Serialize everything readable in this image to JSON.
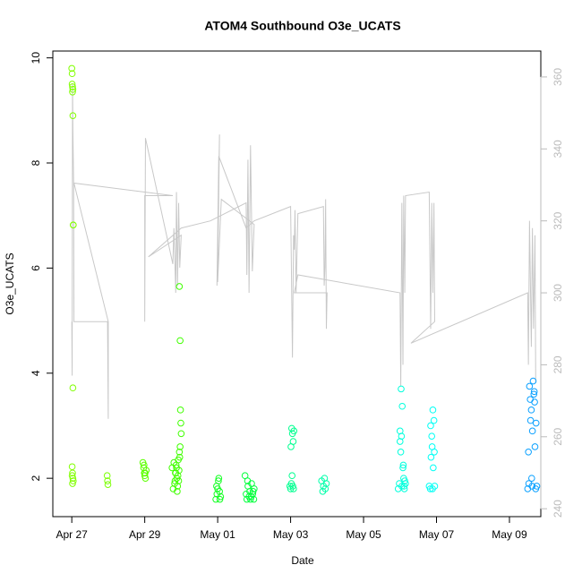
{
  "chart_data": {
    "type": "scatter",
    "title": "ATOM4 Southbound O3e_UCATS",
    "x_label": "Date",
    "y_label": "O3e_UCATS",
    "xlim": [
      -0.52,
      12.86
    ],
    "xticks": [
      {
        "value": 0,
        "label": "Apr 27"
      },
      {
        "value": 2,
        "label": "Apr 29"
      },
      {
        "value": 4,
        "label": "May 01"
      },
      {
        "value": 6,
        "label": "May 03"
      },
      {
        "value": 8,
        "label": "May 05"
      },
      {
        "value": 10,
        "label": "May 07"
      },
      {
        "value": 12,
        "label": "May 09"
      }
    ],
    "ylim": [
      1.27,
      10.13
    ],
    "yticks": [
      2,
      4,
      6,
      8,
      10
    ],
    "y2lim": [
      237.8,
      367.2
    ],
    "y2ticks": [
      240,
      260,
      280,
      300,
      320,
      340,
      360
    ],
    "series": [
      {
        "color": "#80ff00",
        "x": [
          0.0,
          0.01,
          0.01,
          0.02,
          0.02,
          0.03,
          0.03,
          0.04,
          0.04,
          0.03,
          0.01,
          0.02,
          0.03,
          0.04,
          0.02,
          0.01
        ],
        "values": [
          9.8,
          9.7,
          9.5,
          9.45,
          9.35,
          9.4,
          8.9,
          6.82,
          6.82,
          3.72,
          2.22,
          2.1,
          2.0,
          1.95,
          1.9,
          2.05
        ]
      },
      {
        "color": "#7aff00",
        "x": [
          0.97,
          0.98,
          0.99
        ],
        "values": [
          2.05,
          1.95,
          1.88
        ]
      },
      {
        "color": "#5cff00",
        "x": [
          1.95,
          1.97,
          1.99,
          2.0,
          2.02,
          2.04,
          1.98,
          2.01
        ],
        "values": [
          2.3,
          2.2,
          2.1,
          2.05,
          2.0,
          2.15,
          2.25,
          2.1
        ]
      },
      {
        "color": "#40ff00",
        "x": [
          2.75,
          2.78,
          2.8,
          2.82,
          2.84,
          2.86,
          2.88,
          2.9,
          2.92,
          2.94,
          2.96,
          2.98,
          2.99,
          3.0,
          2.97,
          2.95,
          2.93,
          2.91,
          2.89,
          2.87,
          2.85,
          2.83,
          2.95,
          2.97
        ],
        "values": [
          2.2,
          1.8,
          2.3,
          1.9,
          2.1,
          2.25,
          2.0,
          1.85,
          2.35,
          2.15,
          2.4,
          3.3,
          3.05,
          2.85,
          2.6,
          2.5,
          1.95,
          2.05,
          1.75,
          2.2,
          2.1,
          1.95,
          5.65,
          4.62
        ]
      },
      {
        "color": "#10ff20",
        "x": [
          3.95,
          3.98,
          4.0,
          4.02,
          4.05,
          4.08,
          4.03,
          3.97,
          4.06
        ],
        "values": [
          1.6,
          1.7,
          1.8,
          1.95,
          1.75,
          1.65,
          2.0,
          1.85,
          1.6
        ]
      },
      {
        "color": "#00ff3a",
        "x": [
          4.75,
          4.78,
          4.8,
          4.83,
          4.86,
          4.88,
          4.9,
          4.93,
          4.96,
          4.99,
          5.0,
          4.82,
          4.92,
          4.97
        ],
        "values": [
          2.05,
          1.7,
          1.6,
          1.85,
          1.65,
          1.75,
          1.6,
          1.9,
          1.7,
          1.6,
          1.8,
          1.95,
          1.65,
          1.75
        ]
      },
      {
        "color": "#00ff90",
        "x": [
          5.98,
          6.0,
          6.02,
          6.04,
          6.06,
          6.08,
          6.03,
          6.05,
          6.07,
          6.01,
          6.09
        ],
        "values": [
          1.85,
          1.8,
          1.9,
          2.05,
          1.85,
          1.8,
          2.95,
          2.85,
          2.7,
          2.6,
          2.9
        ]
      },
      {
        "color": "#00ffaa",
        "x": [
          6.85,
          6.88,
          6.9,
          6.93,
          6.95,
          6.98
        ],
        "values": [
          1.95,
          1.75,
          1.85,
          2.0,
          1.8,
          1.9
        ]
      },
      {
        "color": "#00ffdd",
        "x": [
          8.95,
          8.98,
          9.0,
          9.02,
          9.05,
          9.08,
          9.1,
          9.12,
          9.15,
          9.03,
          9.06,
          9.0,
          9.09,
          9.13,
          9.04,
          9.11
        ],
        "values": [
          1.8,
          1.9,
          2.7,
          2.5,
          1.85,
          2.2,
          2.0,
          1.8,
          1.9,
          3.7,
          3.37,
          2.9,
          2.25,
          1.95,
          2.8,
          1.85
        ]
      },
      {
        "color": "#00fff5",
        "x": [
          9.8,
          9.83,
          9.85,
          9.87,
          9.9,
          9.93,
          9.95,
          9.88,
          9.91,
          9.84,
          9.89,
          9.94
        ],
        "values": [
          1.85,
          1.8,
          2.4,
          2.8,
          3.3,
          3.1,
          1.85,
          2.6,
          2.2,
          3.0,
          1.8,
          2.5
        ]
      },
      {
        "color": "#0aa0ff",
        "x": [
          12.5,
          12.52,
          12.55,
          12.57,
          12.6,
          12.62,
          12.65,
          12.68,
          12.7,
          12.72,
          12.75,
          12.58,
          12.63,
          12.67,
          12.53,
          12.73,
          12.61,
          12.69
        ],
        "values": [
          1.8,
          2.5,
          3.75,
          3.5,
          3.3,
          1.85,
          3.85,
          3.65,
          2.6,
          1.8,
          1.85,
          3.1,
          2.9,
          3.6,
          1.9,
          3.05,
          2.0,
          3.45
        ]
      },
      {
        "type": "line",
        "axis": "y2",
        "color": "#c8c8c8",
        "x": [
          0.0,
          0.01,
          0.02,
          0.03,
          0.05,
          0.06,
          0.98,
          1.0,
          1.0,
          0.06,
          2.77,
          2.0,
          2.0,
          2.02,
          2.77,
          2.8,
          2.85,
          2.87,
          2.9,
          2.93,
          2.96,
          3.0,
          2.1,
          3.0,
          3.8,
          4.78,
          4.8,
          4.83,
          4.86,
          4.9,
          4.95,
          5.0,
          4.1,
          4.0,
          4.05,
          3.98,
          4.03,
          4.78,
          5.0,
          6.0,
          6.02,
          6.05,
          6.08,
          6.1,
          6.12,
          6.15,
          6.2,
          6.9,
          6.92,
          6.94,
          6.96,
          6.98,
          7.0,
          6.1,
          6.2,
          9.0,
          9.02,
          9.05,
          9.08,
          9.1,
          9.13,
          9.15,
          9.8,
          9.84,
          9.87,
          9.9,
          9.93,
          9.95,
          9.3,
          12.5,
          12.52,
          12.55,
          12.6,
          12.63,
          12.66,
          12.7,
          12.72
        ],
        "values": [
          292,
          277,
          358,
          345,
          330.5,
          292,
          292,
          265,
          292,
          330.5,
          327,
          327,
          292,
          343,
          308,
          318,
          300,
          328,
          302,
          325,
          307,
          316,
          310,
          318,
          320,
          325,
          305,
          337,
          300,
          341,
          306,
          319,
          326,
          303,
          344,
          302,
          338,
          318,
          320,
          324,
          308,
          282,
          316,
          312,
          323,
          300,
          322,
          324,
          302,
          307,
          326,
          290,
          300,
          300,
          305,
          300,
          274,
          325,
          280,
          327,
          300,
          327,
          328,
          290,
          325,
          300,
          325,
          292,
          286,
          300,
          280,
          320,
          285,
          318,
          290,
          316,
          275
        ]
      }
    ]
  }
}
